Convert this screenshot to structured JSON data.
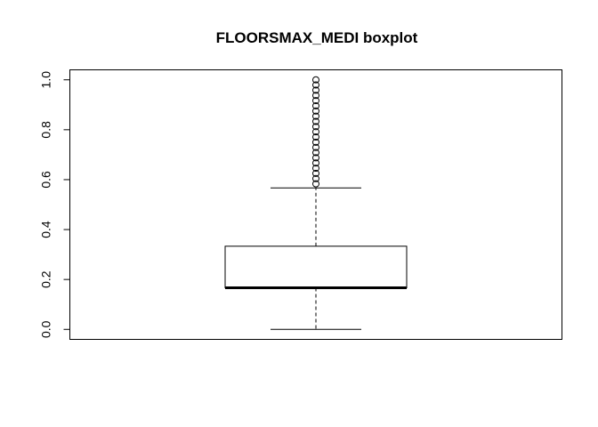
{
  "chart_data": {
    "type": "boxplot",
    "title": "FLOORSMAX_MEDI boxplot",
    "xlabel": "",
    "ylabel": "",
    "ylim": [
      -0.04,
      1.04
    ],
    "yticks": [
      0.0,
      0.2,
      0.4,
      0.6,
      0.8,
      1.0
    ],
    "ytick_labels": [
      "0.0",
      "0.2",
      "0.4",
      "0.6",
      "0.8",
      "1.0"
    ],
    "grid": false,
    "box": {
      "whisker_low": 0.0,
      "q1": 0.1667,
      "median": 0.1667,
      "q3": 0.3333,
      "whisker_high": 0.5667
    },
    "outliers": [
      0.5833,
      0.6042,
      0.625,
      0.6458,
      0.6667,
      0.6875,
      0.7083,
      0.7292,
      0.75,
      0.7708,
      0.7917,
      0.8125,
      0.8333,
      0.8542,
      0.875,
      0.8958,
      0.9167,
      0.9375,
      0.9583,
      0.9792,
      1.0
    ]
  }
}
